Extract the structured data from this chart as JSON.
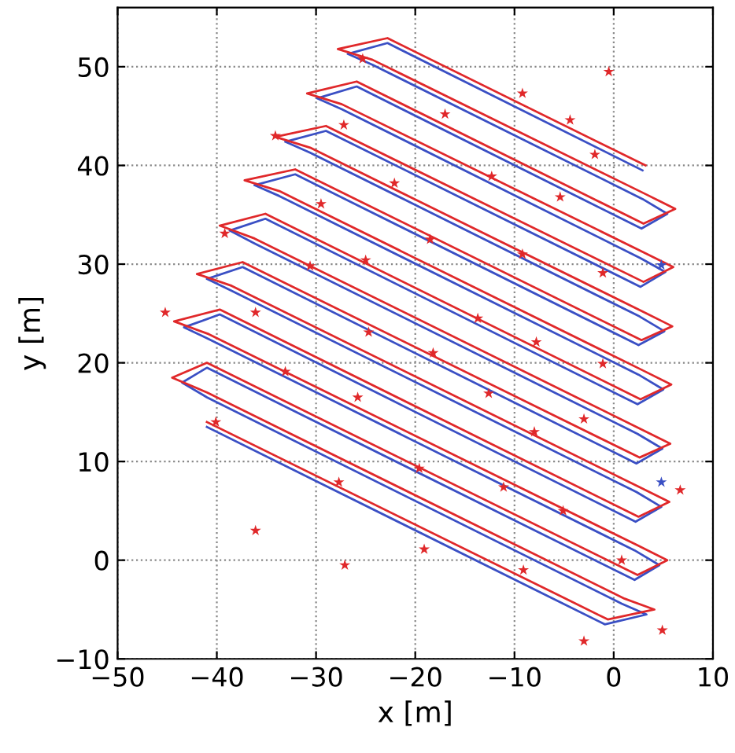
{
  "chart_data": {
    "type": "line",
    "xlabel": "x [m]",
    "ylabel": "y [m]",
    "xlim": [
      -50,
      10
    ],
    "ylim": [
      -10,
      56
    ],
    "xticks": [
      -50,
      -40,
      -30,
      -20,
      -10,
      0,
      10
    ],
    "yticks": [
      -10,
      0,
      10,
      20,
      30,
      40,
      50
    ],
    "grid": true,
    "legend": false,
    "series": [
      {
        "color": "#3a4fc4",
        "line_style": "solid",
        "marker": "none",
        "x": [
          -41,
          -0.9,
          3.3,
          0.8,
          -41,
          -43.5,
          -41,
          2.1,
          4.6,
          2.1,
          -40.8,
          -43.3,
          -39.7,
          2.2,
          4.8,
          2.3,
          -38.5,
          -41,
          -37.4,
          2.3,
          4.9,
          2.4,
          -36.2,
          -38.7,
          -35.1,
          2.4,
          5,
          2.5,
          -33.7,
          -36.2,
          -32.1,
          2.5,
          5.1,
          2.6,
          -30.6,
          -33.1,
          -29,
          2.7,
          5.2,
          2.7,
          -27.4,
          -29.9,
          -25.9,
          2.8,
          5.4,
          2.9,
          -24.3,
          -26.8,
          -22.8,
          2.9
        ],
        "values": [
          13.5,
          -6.5,
          -5.5,
          -4.4,
          16.5,
          18,
          19.5,
          -2,
          -0.5,
          1,
          22.4,
          23.6,
          24.9,
          3.9,
          5.4,
          6.9,
          27.3,
          28.5,
          29.7,
          9.8,
          11.3,
          12.8,
          32.1,
          33.4,
          34.6,
          15.8,
          17.3,
          18.8,
          36.9,
          38,
          39.1,
          21.8,
          23.2,
          24.7,
          41.3,
          42.4,
          43.5,
          27.7,
          29.2,
          30.6,
          45.7,
          46.8,
          48,
          33.6,
          35.1,
          36.6,
          50.2,
          51.3,
          52.4,
          39.5
        ]
      },
      {
        "color": "#e0282a",
        "line_style": "solid",
        "marker": "none",
        "x": [
          -41,
          -0.6,
          4.1,
          1.1,
          -41,
          -44.5,
          -41,
          2.4,
          5.4,
          2.4,
          -40.8,
          -44.3,
          -39.7,
          2.5,
          5.6,
          2.6,
          -38.5,
          -42,
          -37.4,
          2.6,
          5.7,
          2.7,
          -36.2,
          -39.7,
          -35.1,
          2.7,
          5.8,
          2.8,
          -33.7,
          -37.2,
          -32.1,
          2.8,
          5.9,
          2.9,
          -30.6,
          -34.1,
          -29,
          3,
          6,
          3,
          -27.4,
          -30.9,
          -25.9,
          3,
          6.2,
          3.2,
          -24.3,
          -27.8,
          -22.8,
          3.2
        ],
        "values": [
          14,
          -6,
          -5,
          -3.9,
          17,
          18.5,
          20,
          -1.5,
          0,
          1.5,
          22.9,
          24.2,
          25.4,
          4.4,
          5.9,
          7.4,
          27.8,
          29,
          30.2,
          10.4,
          11.8,
          13.3,
          32.6,
          33.9,
          35.1,
          16.3,
          17.8,
          19.3,
          37.4,
          38.5,
          39.6,
          22.3,
          23.7,
          25.2,
          41.8,
          42.9,
          44,
          28.2,
          29.7,
          31.2,
          46.2,
          47.3,
          48.5,
          34.1,
          35.6,
          37.1,
          50.7,
          51.8,
          52.9,
          40
        ]
      },
      {
        "type": "scatter",
        "color": "#e0282a",
        "marker": "star",
        "x": [
          -45.2,
          -39.2,
          -34.1,
          -25.3,
          -27.2,
          -29.5,
          -36.1,
          -40.1,
          -36.1,
          -27.1,
          -27.7,
          -33.1,
          -25.8,
          -24.7,
          -30.6,
          -22.1,
          -17,
          -12.3,
          -18.5,
          -25,
          -9.2,
          -4.4,
          -0.5,
          -1.9,
          -5.4,
          -9.2,
          -1.1,
          -13.7,
          -7.8,
          -1.1,
          -18.2,
          -12.6,
          -3,
          -8,
          -19.6,
          -11.1,
          -5.1,
          6.7,
          -19.1,
          -9.1,
          0.8,
          4.9,
          -3
        ],
        "values": [
          25.1,
          33.1,
          43,
          50.8,
          44.1,
          36.1,
          25.1,
          14,
          3,
          -0.5,
          7.9,
          19.1,
          16.5,
          23.1,
          29.8,
          38.2,
          45.2,
          38.9,
          32.5,
          30.4,
          47.3,
          44.6,
          49.5,
          41.1,
          36.8,
          31,
          29.1,
          24.5,
          22.1,
          19.9,
          21,
          16.9,
          14.3,
          13,
          9.3,
          7.4,
          5,
          7.1,
          1.1,
          -1,
          0,
          -7.1,
          -8.2
        ]
      },
      {
        "type": "scatter",
        "color": "#3a4fc4",
        "marker": "star",
        "x": [
          4.8,
          4.8
        ],
        "values": [
          29.9,
          7.9
        ]
      }
    ]
  }
}
